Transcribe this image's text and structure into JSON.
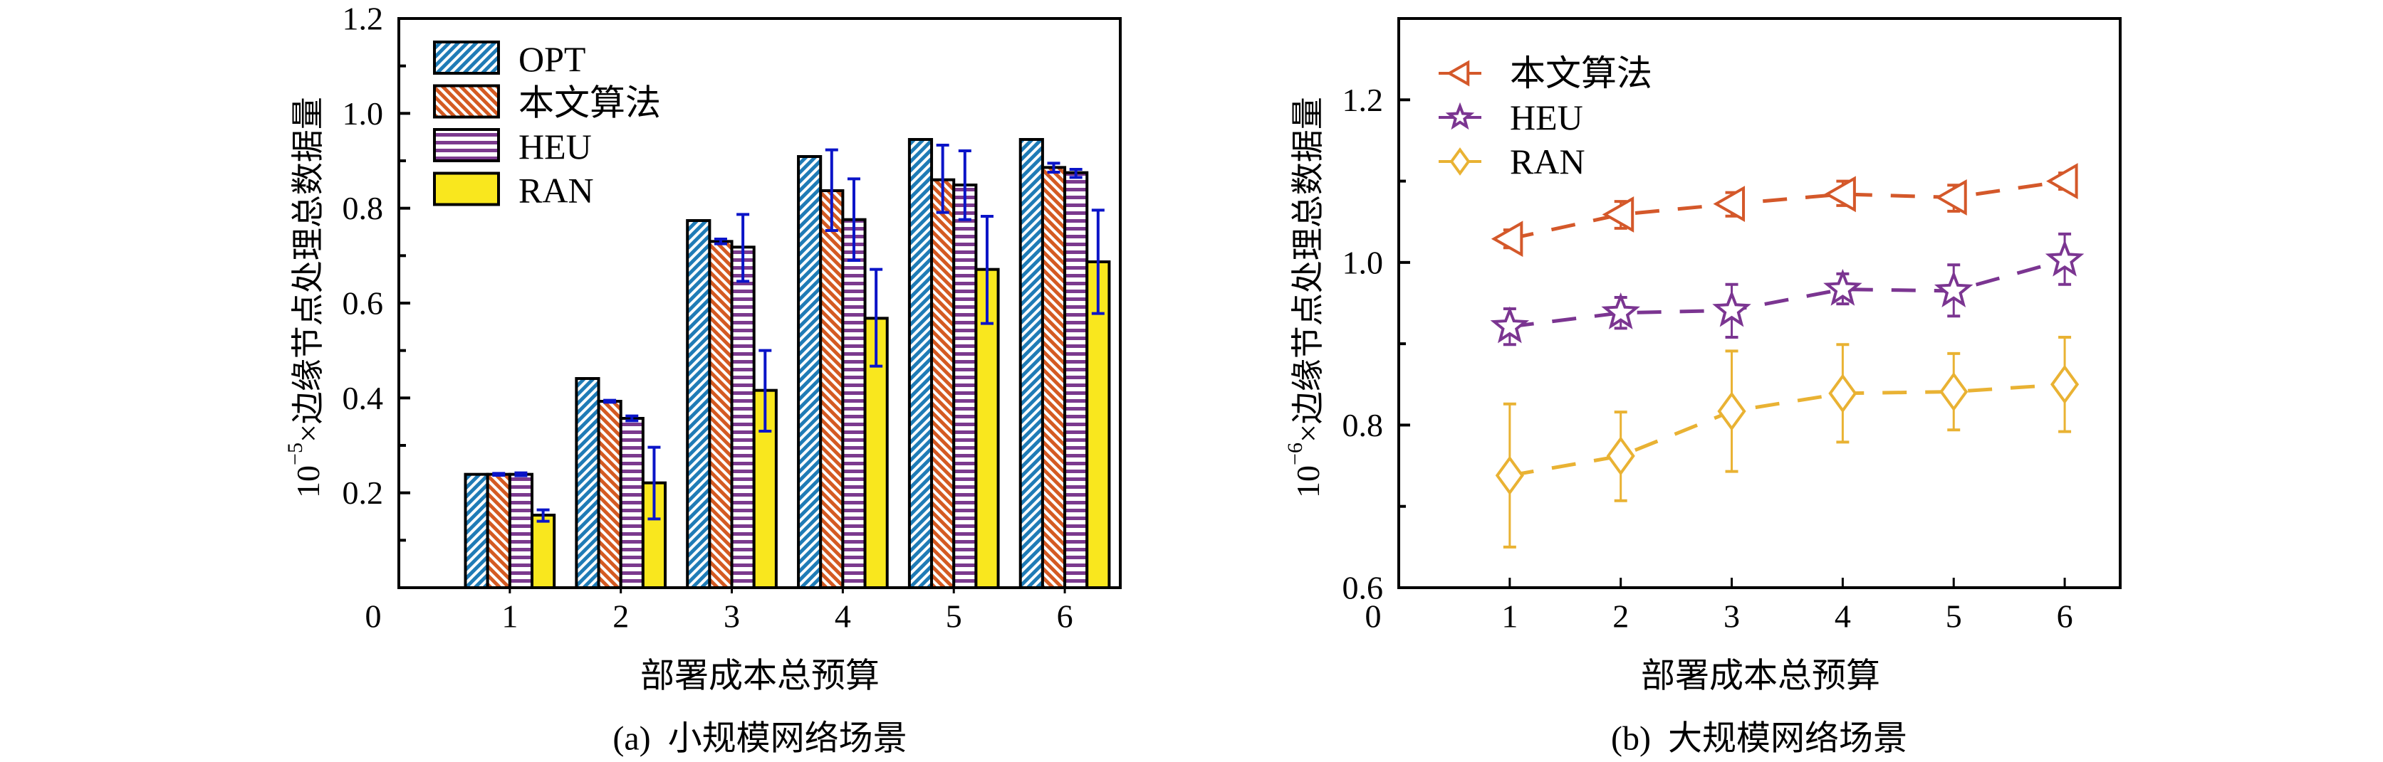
{
  "chart_data": [
    {
      "type": "bar",
      "panel": "a",
      "caption": "(a)  小规模网络场景",
      "xlabel": "部署成本总预算",
      "ylabel_prefix": "10",
      "ylabel_exponent": "−5",
      "ylabel_text": "×边缘节点处理总数据量",
      "xlim": [
        0,
        6.5
      ],
      "ylim": [
        0,
        1.2
      ],
      "xticks": [
        0,
        1,
        2,
        3,
        4,
        5,
        6
      ],
      "xtick_labels": [
        "0",
        "1",
        "2",
        "3",
        "4",
        "5",
        "6"
      ],
      "yticks": [
        0.2,
        0.4,
        0.6,
        0.8,
        1.0,
        1.2
      ],
      "ytick_labels": [
        "0.2",
        "0.4",
        "0.6",
        "0.8",
        "1.0",
        "1.2"
      ],
      "yminor_step": 0.1,
      "legend_position": "top-left",
      "categories": [
        1,
        2,
        3,
        4,
        5,
        6
      ],
      "error_bar_color": "#0a14c8",
      "series": [
        {
          "name": "OPT",
          "pattern": "diag-up",
          "color": "#1f7bb6",
          "values": [
            0.239,
            0.441,
            0.774,
            0.909,
            0.945,
            0.945
          ],
          "err_low": [
            null,
            null,
            null,
            null,
            null,
            null
          ],
          "err_high": [
            null,
            null,
            null,
            null,
            null,
            null
          ]
        },
        {
          "name": "本文算法",
          "pattern": "diag-down",
          "color": "#d45a22",
          "values": [
            0.239,
            0.393,
            0.73,
            0.837,
            0.86,
            0.886
          ],
          "err_low": [
            0.237,
            0.391,
            0.725,
            0.753,
            0.791,
            0.876
          ],
          "err_high": [
            0.241,
            0.395,
            0.735,
            0.923,
            0.933,
            0.895
          ]
        },
        {
          "name": "HEU",
          "pattern": "horizontal",
          "color": "#7b3a8e",
          "values": [
            0.239,
            0.357,
            0.718,
            0.776,
            0.849,
            0.875
          ],
          "err_low": [
            0.236,
            0.352,
            0.646,
            0.69,
            0.776,
            0.865
          ],
          "err_high": [
            0.242,
            0.362,
            0.787,
            0.862,
            0.921,
            0.882
          ]
        },
        {
          "name": "RAN",
          "pattern": "solid",
          "color": "#f9e71e",
          "values": [
            0.153,
            0.221,
            0.416,
            0.568,
            0.671,
            0.687
          ],
          "err_low": [
            0.14,
            0.145,
            0.33,
            0.467,
            0.557,
            0.578
          ],
          "err_high": [
            0.164,
            0.296,
            0.5,
            0.671,
            0.783,
            0.796
          ]
        }
      ]
    },
    {
      "type": "line",
      "panel": "b",
      "caption": "(b)  大规模网络场景",
      "xlabel": "部署成本总预算",
      "ylabel_prefix": "10",
      "ylabel_exponent": "−6",
      "ylabel_text": "×边缘节点处理总数据量",
      "xlim": [
        0,
        6.5
      ],
      "ylim": [
        0.6,
        1.3
      ],
      "xticks": [
        0,
        1,
        2,
        3,
        4,
        5,
        6
      ],
      "xtick_labels": [
        "0",
        "1",
        "2",
        "3",
        "4",
        "5",
        "6"
      ],
      "yticks": [
        0.6,
        0.8,
        1.0,
        1.2
      ],
      "ytick_labels": [
        "0.6",
        "0.8",
        "1.0",
        "1.2"
      ],
      "yminor_step": 0.1,
      "legend_position": "top-left",
      "x": [
        1,
        2,
        3,
        4,
        5,
        6
      ],
      "series": [
        {
          "name": "本文算法",
          "marker": "triangle-left",
          "color": "#d4582a",
          "values": [
            1.029,
            1.059,
            1.072,
            1.084,
            1.08,
            1.1
          ],
          "err_low": [
            1.018,
            1.042,
            1.057,
            1.07,
            1.063,
            1.09
          ],
          "err_high": [
            1.04,
            1.075,
            1.086,
            1.1,
            1.095,
            1.11
          ]
        },
        {
          "name": "HEU",
          "marker": "star",
          "color": "#7b3591",
          "values": [
            0.921,
            0.938,
            0.941,
            0.967,
            0.965,
            1.003
          ],
          "err_low": [
            0.899,
            0.919,
            0.908,
            0.949,
            0.934,
            0.973
          ],
          "err_high": [
            0.943,
            0.957,
            0.973,
            0.986,
            0.997,
            1.035
          ]
        },
        {
          "name": "RAN",
          "marker": "diamond",
          "color": "#e9b233",
          "values": [
            0.738,
            0.762,
            0.817,
            0.839,
            0.841,
            0.85
          ],
          "err_low": [
            0.65,
            0.707,
            0.743,
            0.779,
            0.794,
            0.792
          ],
          "err_high": [
            0.826,
            0.816,
            0.891,
            0.899,
            0.888,
            0.908
          ]
        }
      ]
    }
  ]
}
